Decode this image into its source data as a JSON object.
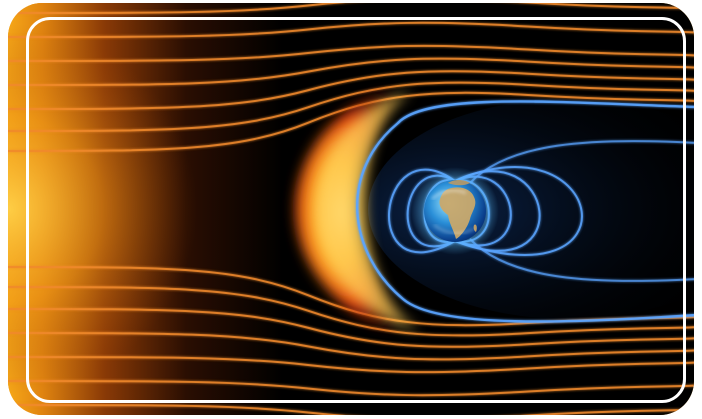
{
  "image": {
    "subject": "earth-magnetosphere-solar-wind",
    "colors": {
      "sun_core": "#ffd23a",
      "sun_edge": "#e88408",
      "space": "#000000",
      "solar_wind_line": "#f08a2a",
      "bow_shock_hot": "#ffe27a",
      "bow_shock_red": "#d8200c",
      "field_line": "#5aa4ff",
      "frame_outer": "#f0a51c",
      "frame_border": "#ffffff"
    }
  }
}
